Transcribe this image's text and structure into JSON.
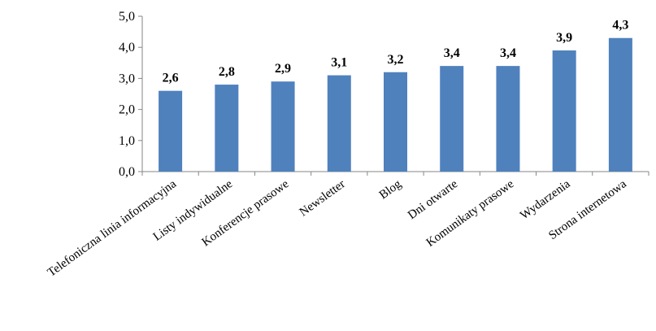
{
  "chart_data": {
    "type": "bar",
    "categories": [
      "Telefoniczna linia informacyjna",
      "Listy indywidualne",
      "Konferencje prasowe",
      "Newsletter",
      "Blog",
      "Dni otwarte",
      "Komunikaty prasowe",
      "Wydarzenia",
      "Strona internetowa"
    ],
    "values": [
      2.6,
      2.8,
      2.9,
      3.1,
      3.2,
      3.4,
      3.4,
      3.9,
      4.3
    ],
    "data_labels": [
      "2,6",
      "2,8",
      "2,9",
      "3,1",
      "3,2",
      "3,4",
      "3,4",
      "3,9",
      "4,3"
    ],
    "yticks": [
      0,
      1,
      2,
      3,
      4,
      5
    ],
    "ytick_labels": [
      "0,0",
      "1,0",
      "2,0",
      "3,0",
      "4,0",
      "5,0"
    ],
    "ylim": [
      0,
      5
    ],
    "title": "",
    "xlabel": "",
    "ylabel": "",
    "grid": false,
    "legend": "none",
    "bar_color": "#4F81BD"
  }
}
